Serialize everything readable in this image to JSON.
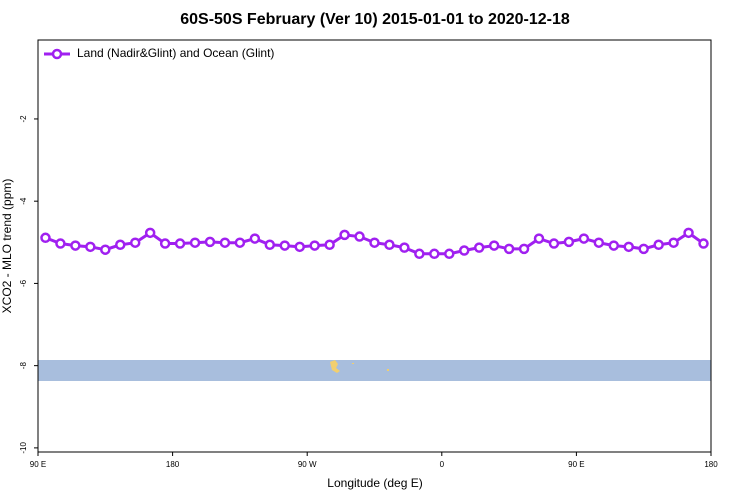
{
  "chart_data": {
    "type": "line",
    "title": "60S-50S February (Ver 10)   2015-01-01 to 2020-12-18",
    "x_label": "Longitude (deg E)",
    "y_label": "XCO2 - MLO trend (ppm)",
    "x": [
      95,
      105,
      115,
      125,
      135,
      145,
      155,
      165,
      175,
      185,
      195,
      205,
      215,
      225,
      235,
      245,
      255,
      265,
      275,
      285,
      295,
      305,
      315,
      325,
      335,
      345,
      355,
      365,
      375,
      385,
      395,
      405,
      415,
      425,
      435,
      445,
      455,
      465,
      475,
      485,
      495,
      505,
      515,
      525,
      535
    ],
    "series": [
      {
        "name": "Land (Nadir&Glint) and Ocean (Glint)",
        "color": "#a020f0",
        "values": [
          -4.89,
          -5.03,
          -5.08,
          -5.11,
          -5.18,
          -5.06,
          -5.01,
          -4.77,
          -5.03,
          -5.03,
          -5.01,
          -4.99,
          -5.01,
          -5.01,
          -4.91,
          -5.06,
          -5.08,
          -5.11,
          -5.08,
          -5.06,
          -4.82,
          -4.86,
          -5.01,
          -5.06,
          -5.13,
          -5.28,
          -5.28,
          -5.28,
          -5.2,
          -5.13,
          -5.08,
          -5.16,
          -5.16,
          -4.91,
          -5.03,
          -4.99,
          -4.91,
          -5.01,
          -5.08,
          -5.11,
          -5.16,
          -5.06,
          -5.01,
          -4.77,
          -5.03
        ]
      }
    ],
    "xlim": [
      90,
      540
    ],
    "xticks": [
      {
        "value": 90,
        "label": "90 E"
      },
      {
        "value": 180,
        "label": "180"
      },
      {
        "value": 270,
        "label": "90 W"
      },
      {
        "value": 360,
        "label": "0"
      },
      {
        "value": 450,
        "label": "90 E"
      },
      {
        "value": 540,
        "label": "180"
      }
    ],
    "ylim": [
      -10.1,
      -0.08
    ],
    "yticks": [
      -10,
      -8,
      -6,
      -4,
      -2
    ],
    "legend": "top-left"
  }
}
